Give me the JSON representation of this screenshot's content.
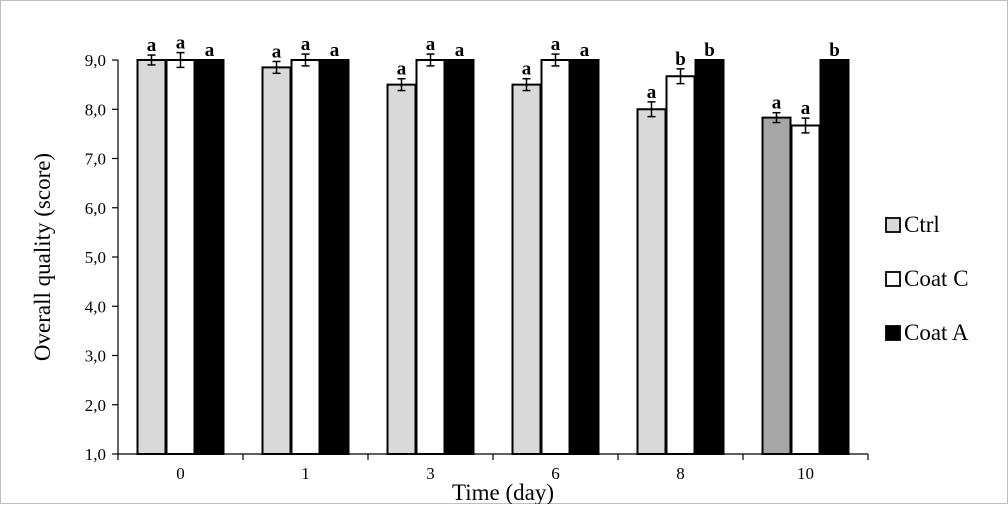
{
  "chart_data": {
    "type": "bar",
    "title": "",
    "xlabel": "Time (day)",
    "ylabel": "Overall quality (score)",
    "ylim": [
      1.0,
      9.0
    ],
    "y_ticks": [
      "1,0",
      "2,0",
      "3,0",
      "4,0",
      "5,0",
      "6,0",
      "7,0",
      "8,0",
      "9,0"
    ],
    "categories": [
      "0",
      "1",
      "3",
      "6",
      "8",
      "10"
    ],
    "series": [
      {
        "name": "Ctrl",
        "color": "#d9d9d9",
        "values": [
          9.0,
          8.85,
          8.5,
          8.5,
          8.0,
          7.83
        ],
        "errors": [
          0.1,
          0.12,
          0.12,
          0.12,
          0.15,
          0.1
        ],
        "sig": [
          "a",
          "a",
          "a",
          "a",
          "a",
          "a"
        ]
      },
      {
        "name": "Coat C",
        "color": "#ffffff",
        "values": [
          9.0,
          9.0,
          9.0,
          9.0,
          8.67,
          7.67
        ],
        "errors": [
          0.15,
          0.12,
          0.12,
          0.12,
          0.15,
          0.15
        ],
        "sig": [
          "a",
          "a",
          "a",
          "a",
          "b",
          "a"
        ]
      },
      {
        "name": "Coat A",
        "color": "#000000",
        "values": [
          9.0,
          9.0,
          9.0,
          9.0,
          9.0,
          9.0
        ],
        "errors": [
          0,
          0,
          0,
          0,
          0,
          0
        ],
        "sig": [
          "a",
          "a",
          "a",
          "a",
          "b",
          "b"
        ]
      }
    ],
    "legend_position": "right",
    "grid": false
  }
}
